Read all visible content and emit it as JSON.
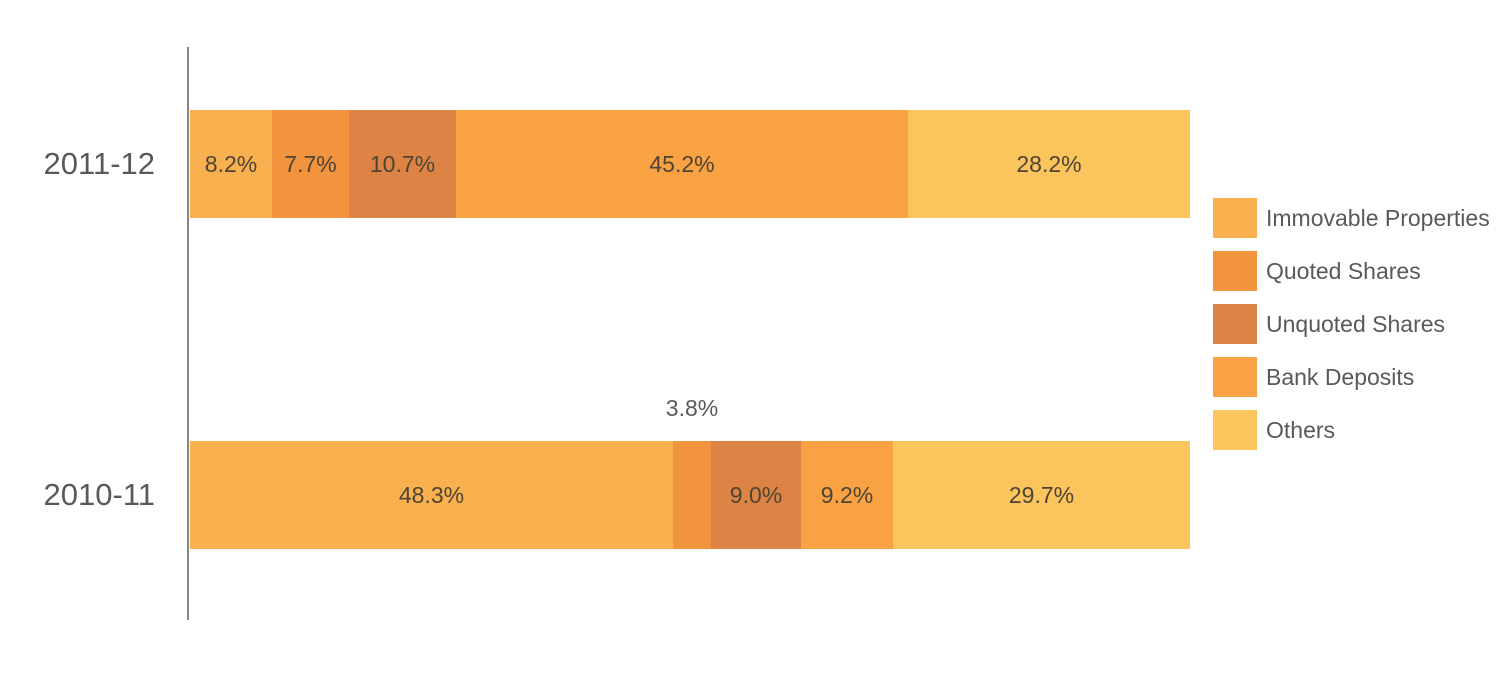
{
  "chart_data": {
    "type": "bar",
    "orientation": "horizontal",
    "stacked": true,
    "title": "",
    "xlabel": "",
    "ylabel": "",
    "xlim": [
      0,
      100
    ],
    "grid": false,
    "value_format": "percent",
    "legend_position": "right",
    "categories": [
      "2011-12",
      "2010-11"
    ],
    "series": [
      {
        "name": "Immovable Properties",
        "color": "#F9B04E",
        "values": [
          8.2,
          48.3
        ],
        "labels": [
          "8.2%",
          "48.3%"
        ]
      },
      {
        "name": "Quoted Shares",
        "color": "#F2933E",
        "values": [
          7.7,
          3.8
        ],
        "labels": [
          "7.7%",
          "3.8%"
        ]
      },
      {
        "name": "Unquoted Shares",
        "color": "#DC8345",
        "values": [
          10.7,
          9.0
        ],
        "labels": [
          "10.7%",
          "9.0%"
        ]
      },
      {
        "name": "Bank Deposits",
        "color": "#F9A243",
        "values": [
          45.2,
          9.2
        ],
        "labels": [
          "45.2%",
          "9.2%"
        ]
      },
      {
        "name": "Others",
        "color": "#FBC45D",
        "values": [
          28.2,
          29.7
        ],
        "labels": [
          "28.2%",
          "29.7%"
        ]
      }
    ]
  },
  "styles": {
    "background": "#FFFFFF",
    "axis_color": "#878787",
    "text_color": "#595959",
    "inbar_label_color": "#4E4434"
  }
}
